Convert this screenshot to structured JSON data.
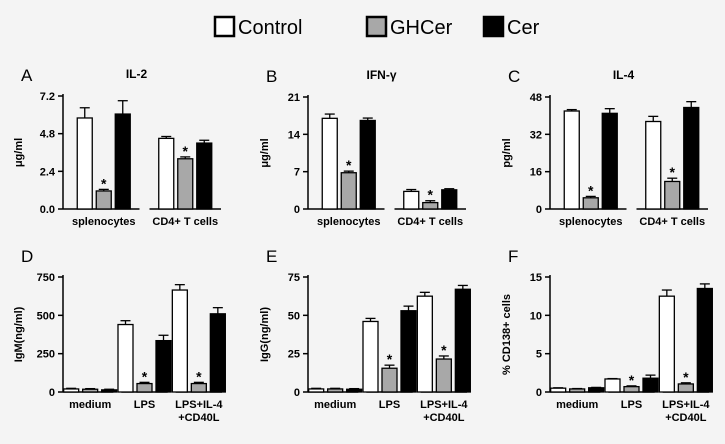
{
  "legend": [
    {
      "label": "Control",
      "color": "#ffffff"
    },
    {
      "label": "GHCer",
      "color": "#a8a8a8"
    },
    {
      "label": "Cer",
      "color": "#000000"
    }
  ],
  "chart_data": [
    {
      "id": "A",
      "letter": "A",
      "title": "IL-2",
      "type": "bar",
      "ylabel": "μg/ml",
      "ylim": [
        0,
        7.2
      ],
      "ticks": [
        0,
        2.4,
        4.8,
        7.2
      ],
      "tick_labels": [
        "0.0",
        "2.4",
        "4.8",
        "7.2"
      ],
      "categories": [
        [
          "splenocytes"
        ],
        [
          "CD4+ T cells"
        ]
      ],
      "series": [
        {
          "name": "Control",
          "values": [
            5.8,
            4.5
          ],
          "errors": [
            0.65,
            0.12
          ]
        },
        {
          "name": "GHCer",
          "values": [
            1.15,
            3.2
          ],
          "errors": [
            0.1,
            0.12
          ]
        },
        {
          "name": "Cer",
          "values": [
            6.05,
            4.2
          ],
          "errors": [
            0.85,
            0.18
          ]
        }
      ],
      "significance": [
        [
          1,
          0
        ],
        [
          1,
          1
        ]
      ]
    },
    {
      "id": "B",
      "letter": "B",
      "title": "IFN-γ",
      "type": "bar",
      "ylabel": "μg/ml",
      "ylim": [
        0,
        21
      ],
      "ticks": [
        0,
        7,
        14,
        21
      ],
      "tick_labels": [
        "0",
        "7",
        "14",
        "21"
      ],
      "categories": [
        [
          "splenocytes"
        ],
        [
          "CD4+ T cells"
        ]
      ],
      "series": [
        {
          "name": "Control",
          "values": [
            17,
            3.3
          ],
          "errors": [
            0.8,
            0.35
          ]
        },
        {
          "name": "GHCer",
          "values": [
            6.8,
            1.2
          ],
          "errors": [
            0.3,
            0.35
          ]
        },
        {
          "name": "Cer",
          "values": [
            16.6,
            3.6
          ],
          "errors": [
            0.45,
            0.2
          ]
        }
      ],
      "significance": [
        [
          1,
          0
        ],
        [
          1,
          1
        ]
      ]
    },
    {
      "id": "C",
      "letter": "C",
      "title": "IL-4",
      "type": "bar",
      "ylabel": "pg/ml",
      "ylim": [
        0,
        48
      ],
      "ticks": [
        0,
        16,
        32,
        48
      ],
      "tick_labels": [
        "0",
        "16",
        "32",
        "48"
      ],
      "categories": [
        [
          "splenocytes"
        ],
        [
          "CD4+ T cells"
        ]
      ],
      "series": [
        {
          "name": "Control",
          "values": [
            42,
            37.5
          ],
          "errors": [
            0.6,
            2.2
          ]
        },
        {
          "name": "GHCer",
          "values": [
            4.8,
            11.8
          ],
          "errors": [
            0.6,
            1.4
          ]
        },
        {
          "name": "Cer",
          "values": [
            41,
            43.5
          ],
          "errors": [
            2.0,
            2.5
          ]
        }
      ],
      "significance": [
        [
          1,
          0
        ],
        [
          1,
          1
        ]
      ]
    },
    {
      "id": "D",
      "letter": "D",
      "title": "",
      "type": "bar",
      "ylabel": "IgM(ng/ml)",
      "ylim": [
        0,
        750
      ],
      "ticks": [
        0,
        250,
        500,
        750
      ],
      "tick_labels": [
        "0",
        "250",
        "500",
        "750"
      ],
      "categories": [
        [
          "medium"
        ],
        [
          "LPS"
        ],
        [
          "LPS+IL-4",
          "+CD40L"
        ]
      ],
      "series": [
        {
          "name": "Control",
          "values": [
            20,
            440,
            665
          ],
          "errors": [
            4,
            25,
            35
          ]
        },
        {
          "name": "GHCer",
          "values": [
            18,
            55,
            55
          ],
          "errors": [
            4,
            8,
            8
          ]
        },
        {
          "name": "Cer",
          "values": [
            14,
            335,
            510
          ],
          "errors": [
            4,
            35,
            40
          ]
        }
      ],
      "significance": [
        [
          1,
          1
        ],
        [
          1,
          2
        ]
      ]
    },
    {
      "id": "E",
      "letter": "E",
      "title": "",
      "type": "bar",
      "ylabel": "IgG(ng/ml)",
      "ylim": [
        0,
        75
      ],
      "ticks": [
        0,
        25,
        50,
        75
      ],
      "tick_labels": [
        "0",
        "25",
        "50",
        "75"
      ],
      "categories": [
        [
          "medium"
        ],
        [
          "LPS"
        ],
        [
          "LPS+IL-4",
          "+CD40L"
        ]
      ],
      "series": [
        {
          "name": "Control",
          "values": [
            2,
            46,
            62.5
          ],
          "errors": [
            0.4,
            2,
            2.5
          ]
        },
        {
          "name": "GHCer",
          "values": [
            2,
            15.5,
            21.5
          ],
          "errors": [
            0.4,
            2,
            2
          ]
        },
        {
          "name": "Cer",
          "values": [
            1.8,
            53,
            67
          ],
          "errors": [
            0.4,
            3,
            2.5
          ]
        }
      ],
      "significance": [
        [
          1,
          1
        ],
        [
          1,
          2
        ]
      ]
    },
    {
      "id": "F",
      "letter": "F",
      "title": "",
      "type": "bar",
      "ylabel": "% CD138+ cells",
      "ylim": [
        0,
        15
      ],
      "ticks": [
        0,
        5,
        10,
        15
      ],
      "tick_labels": [
        "0",
        "5",
        "10",
        "15"
      ],
      "categories": [
        [
          "medium"
        ],
        [
          "LPS"
        ],
        [
          "LPS+IL-4",
          "+CD40L"
        ]
      ],
      "series": [
        {
          "name": "Control",
          "values": [
            0.5,
            1.7,
            12.5
          ],
          "errors": [
            0.05,
            0.05,
            0.8
          ]
        },
        {
          "name": "GHCer",
          "values": [
            0.4,
            0.7,
            1.05
          ],
          "errors": [
            0.05,
            0.1,
            0.15
          ]
        },
        {
          "name": "Cer",
          "values": [
            0.55,
            1.8,
            13.5
          ],
          "errors": [
            0.05,
            0.4,
            0.6
          ]
        }
      ],
      "significance": [
        [
          1,
          1
        ],
        [
          1,
          2
        ]
      ]
    }
  ]
}
